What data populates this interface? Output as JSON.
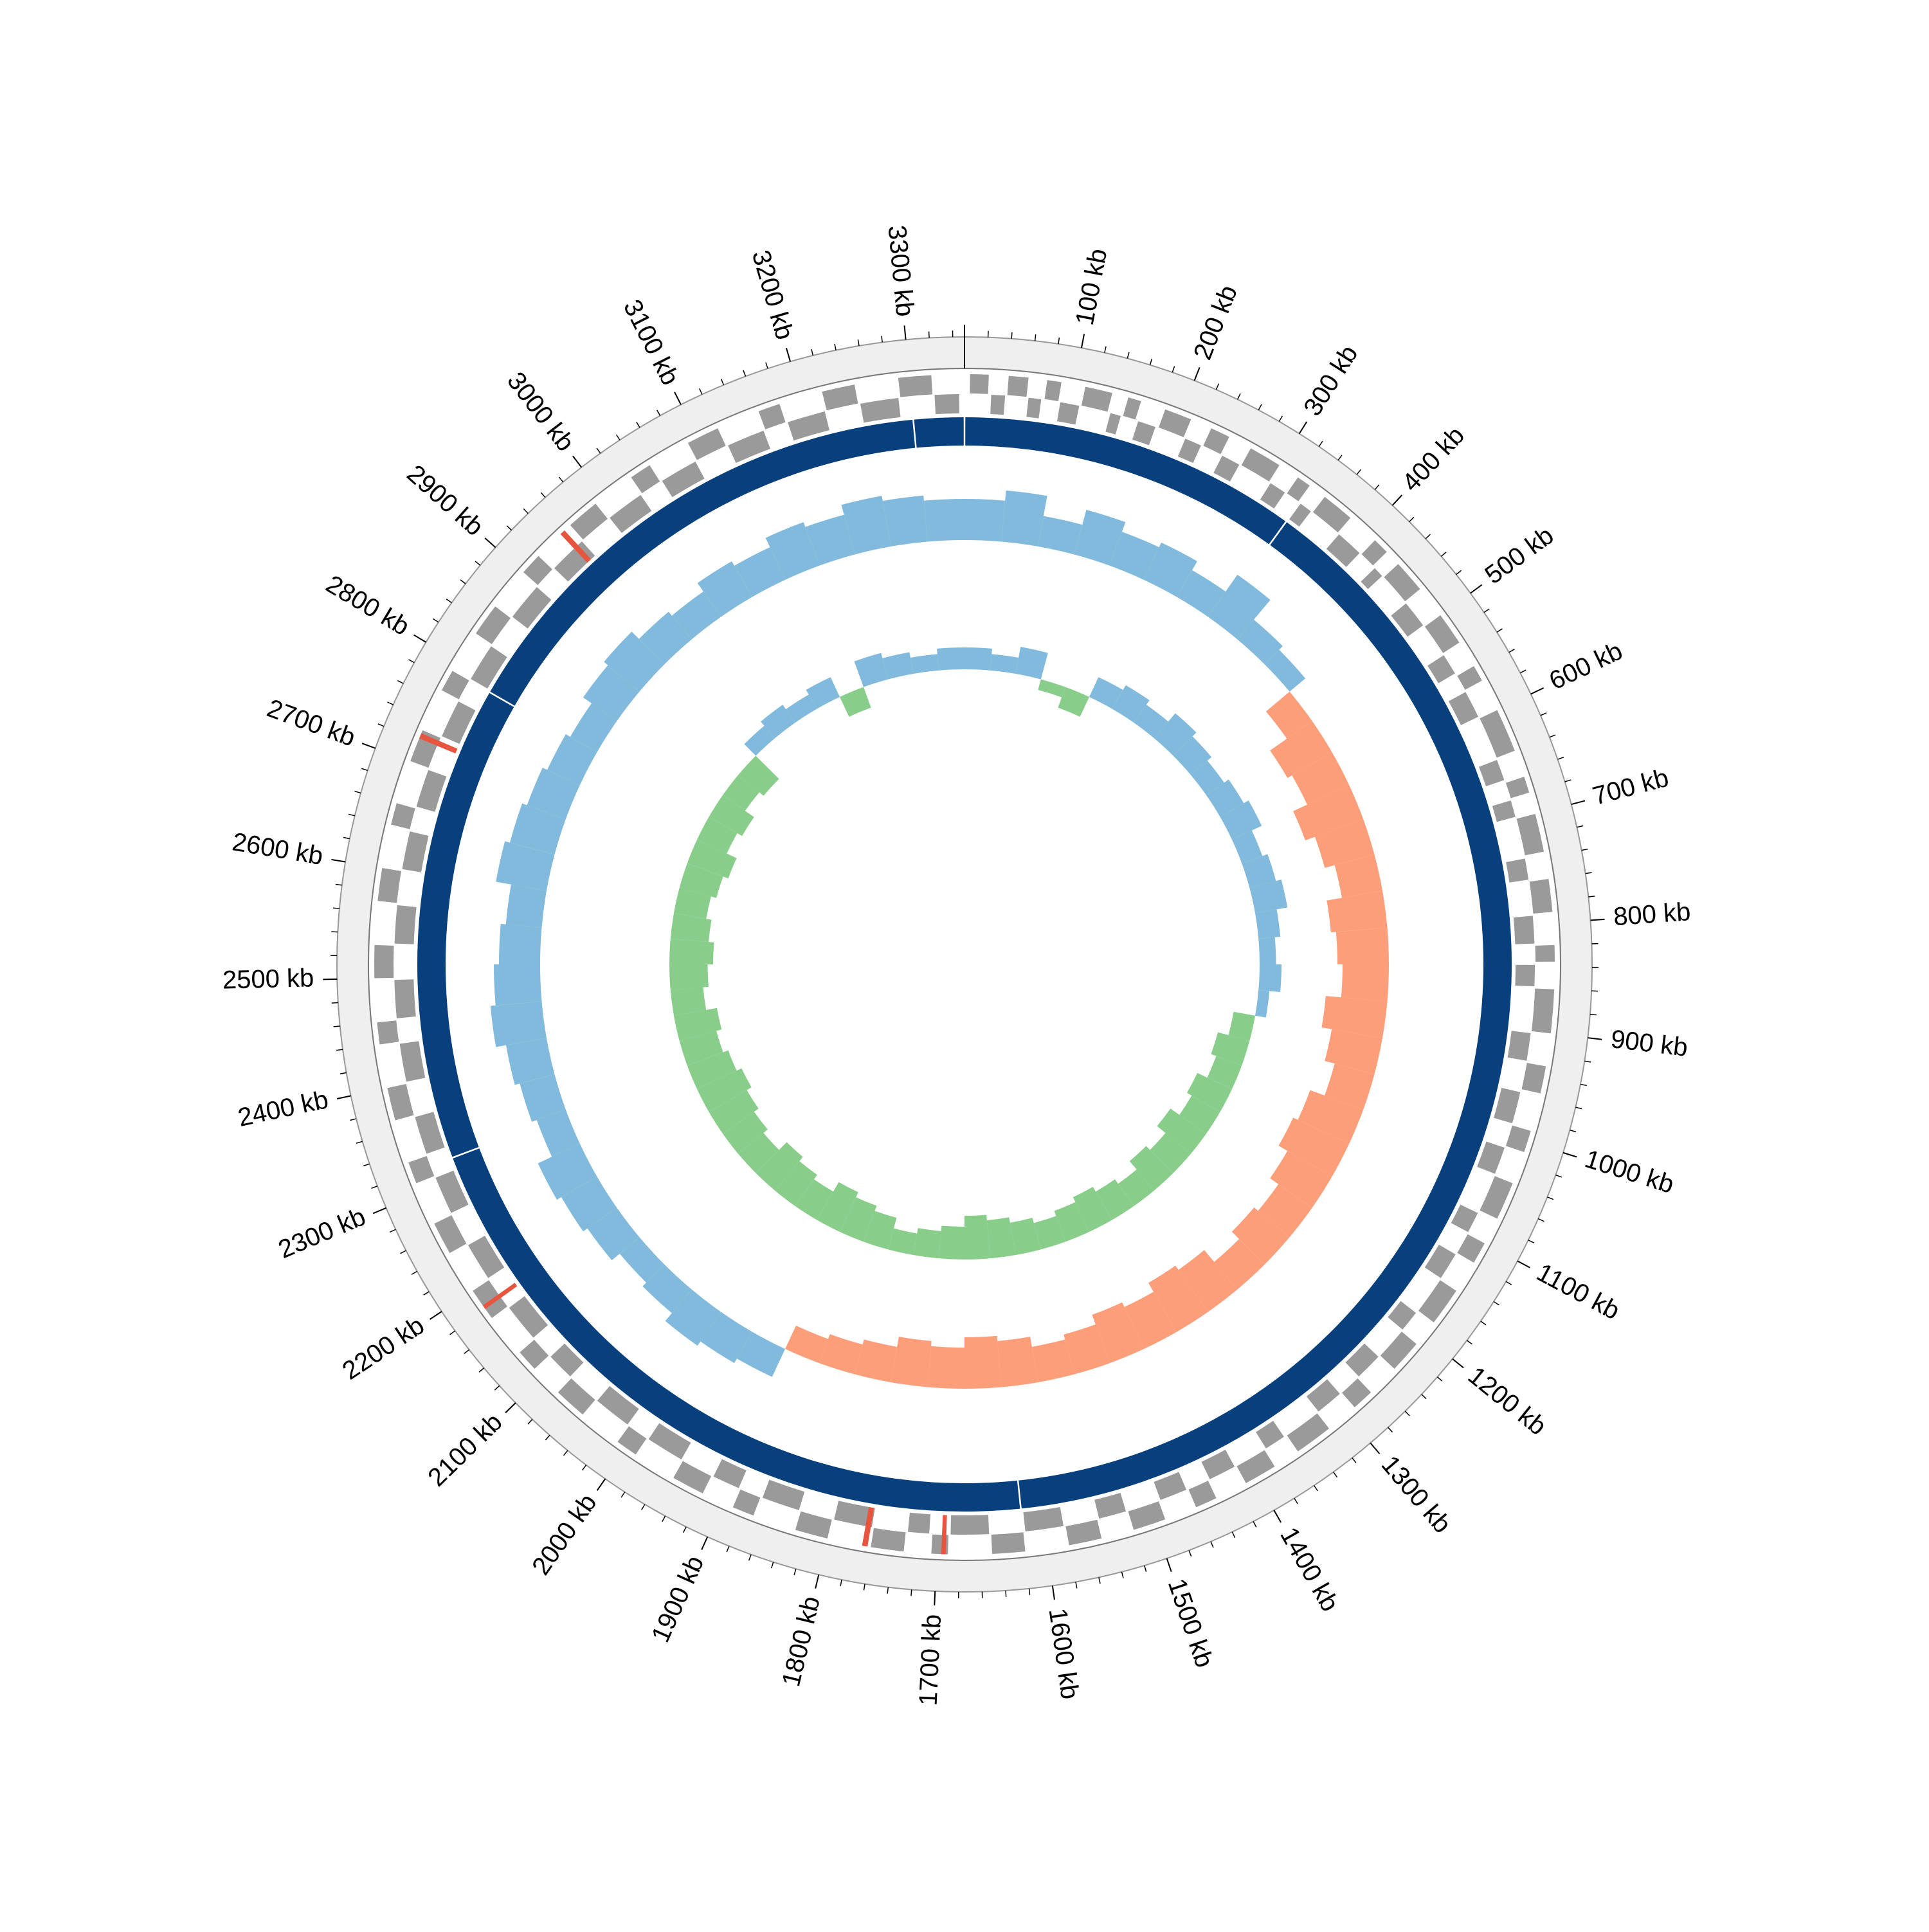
{
  "chart_data": {
    "type": "circular-genome",
    "xlim": [
      0,
      3350
    ],
    "xticks": [
      {
        "value": 100,
        "label": "100 kb"
      },
      {
        "value": 200,
        "label": "200 kb"
      },
      {
        "value": 300,
        "label": "300 kb"
      },
      {
        "value": 400,
        "label": "400 kb"
      },
      {
        "value": 500,
        "label": "500 kb"
      },
      {
        "value": 600,
        "label": "600 kb"
      },
      {
        "value": 700,
        "label": "700 kb"
      },
      {
        "value": 800,
        "label": "800 kb"
      },
      {
        "value": 900,
        "label": "900 kb"
      },
      {
        "value": 1000,
        "label": "1000 kb"
      },
      {
        "value": 1100,
        "label": "1100 kb"
      },
      {
        "value": 1200,
        "label": "1200 kb"
      },
      {
        "value": 1300,
        "label": "1300 kb"
      },
      {
        "value": 1400,
        "label": "1400 kb"
      },
      {
        "value": 1500,
        "label": "1500 kb"
      },
      {
        "value": 1600,
        "label": "1600 kb"
      },
      {
        "value": 1700,
        "label": "1700 kb"
      },
      {
        "value": 1800,
        "label": "1800 kb"
      },
      {
        "value": 1900,
        "label": "1900 kb"
      },
      {
        "value": 2000,
        "label": "2000 kb"
      },
      {
        "value": 2100,
        "label": "2100 kb"
      },
      {
        "value": 2200,
        "label": "2200 kb"
      },
      {
        "value": 2300,
        "label": "2300 kb"
      },
      {
        "value": 2400,
        "label": "2400 kb"
      },
      {
        "value": 2500,
        "label": "2500 kb"
      },
      {
        "value": 2600,
        "label": "2600 kb"
      },
      {
        "value": 2700,
        "label": "2700 kb"
      },
      {
        "value": 2800,
        "label": "2800 kb"
      },
      {
        "value": 2900,
        "label": "2900 kb"
      },
      {
        "value": 3000,
        "label": "3000 kb"
      },
      {
        "value": 3100,
        "label": "3100 kb"
      },
      {
        "value": 3200,
        "label": "3200 kb"
      },
      {
        "value": 3300,
        "label": "3300 kb"
      }
    ],
    "minor_tick_step": 20,
    "gene_color": "#9a9a9a",
    "rrna_color": "#e8553e",
    "genes_forward": [
      [
        5,
        22
      ],
      [
        40,
        58
      ],
      [
        75,
        88
      ],
      [
        110,
        135
      ],
      [
        150,
        162
      ],
      [
        185,
        210
      ],
      [
        230,
        248
      ],
      [
        270,
        300
      ],
      [
        320,
        333
      ],
      [
        350,
        380
      ],
      [
        410,
        425
      ],
      [
        440,
        470
      ],
      [
        500,
        530
      ],
      [
        555,
        570
      ],
      [
        600,
        640
      ],
      [
        665,
        680
      ],
      [
        700,
        735
      ],
      [
        760,
        790
      ],
      [
        820,
        835
      ],
      [
        860,
        900
      ],
      [
        930,
        955
      ],
      [
        990,
        1010
      ],
      [
        1040,
        1075
      ],
      [
        1100,
        1120
      ],
      [
        1150,
        1185
      ],
      [
        1210,
        1240
      ],
      [
        1270,
        1290
      ],
      [
        1320,
        1355
      ],
      [
        1380,
        1410
      ],
      [
        1440,
        1460
      ],
      [
        1490,
        1520
      ],
      [
        1550,
        1580
      ],
      [
        1620,
        1650
      ],
      [
        1690,
        1705
      ],
      [
        1730,
        1760
      ],
      [
        1800,
        1830
      ],
      [
        1870,
        1890
      ],
      [
        1920,
        1950
      ],
      [
        1990,
        2010
      ],
      [
        2050,
        2080
      ],
      [
        2110,
        2130
      ],
      [
        2170,
        2200
      ],
      [
        2240,
        2270
      ],
      [
        2310,
        2330
      ],
      [
        2370,
        2400
      ],
      [
        2440,
        2460
      ],
      [
        2500,
        2530
      ],
      [
        2570,
        2600
      ],
      [
        2640,
        2660
      ],
      [
        2700,
        2730
      ],
      [
        2770,
        2790
      ],
      [
        2830,
        2860
      ],
      [
        2900,
        2920
      ],
      [
        2960,
        2990
      ],
      [
        3030,
        3050
      ],
      [
        3090,
        3120
      ],
      [
        3160,
        3180
      ],
      [
        3220,
        3250
      ],
      [
        3290,
        3320
      ]
    ],
    "genes_reverse": [
      [
        25,
        38
      ],
      [
        60,
        72
      ],
      [
        90,
        108
      ],
      [
        138,
        148
      ],
      [
        165,
        182
      ],
      [
        212,
        228
      ],
      [
        250,
        268
      ],
      [
        302,
        318
      ],
      [
        336,
        348
      ],
      [
        382,
        408
      ],
      [
        428,
        438
      ],
      [
        472,
        498
      ],
      [
        532,
        552
      ],
      [
        572,
        598
      ],
      [
        642,
        662
      ],
      [
        682,
        698
      ],
      [
        738,
        758
      ],
      [
        792,
        818
      ],
      [
        838,
        858
      ],
      [
        902,
        928
      ],
      [
        958,
        988
      ],
      [
        1012,
        1038
      ],
      [
        1078,
        1098
      ],
      [
        1122,
        1148
      ],
      [
        1188,
        1208
      ],
      [
        1242,
        1268
      ],
      [
        1292,
        1318
      ],
      [
        1358,
        1378
      ],
      [
        1412,
        1438
      ],
      [
        1462,
        1488
      ],
      [
        1522,
        1548
      ],
      [
        1582,
        1618
      ],
      [
        1652,
        1688
      ],
      [
        1708,
        1728
      ],
      [
        1762,
        1798
      ],
      [
        1832,
        1868
      ],
      [
        1892,
        1918
      ],
      [
        1952,
        1988
      ],
      [
        2012,
        2048
      ],
      [
        2082,
        2108
      ],
      [
        2132,
        2168
      ],
      [
        2202,
        2238
      ],
      [
        2272,
        2308
      ],
      [
        2332,
        2368
      ],
      [
        2402,
        2438
      ],
      [
        2462,
        2498
      ],
      [
        2532,
        2568
      ],
      [
        2602,
        2638
      ],
      [
        2662,
        2698
      ],
      [
        2732,
        2768
      ],
      [
        2792,
        2828
      ],
      [
        2862,
        2898
      ],
      [
        2922,
        2958
      ],
      [
        2992,
        3028
      ],
      [
        3052,
        3088
      ],
      [
        3122,
        3158
      ],
      [
        3182,
        3218
      ],
      [
        3252,
        3288
      ],
      [
        3322,
        3345
      ]
    ],
    "rrna": [
      [
        2948,
        2953
      ],
      [
        2722,
        2727
      ],
      [
        2180,
        2184
      ],
      [
        1763,
        1768
      ],
      [
        1692,
        1696
      ]
    ],
    "contig_color": "#08407e",
    "contigs": [
      [
        0,
        335
      ],
      [
        335,
        1620
      ],
      [
        1620,
        2320
      ],
      [
        2320,
        2790
      ],
      [
        2790,
        3300
      ],
      [
        3300,
        3350
      ]
    ],
    "gc_skew": {
      "positive_color": "#6baed6",
      "negative_color": "#fc8d62",
      "values": [
        0.04,
        0.05,
        0.03,
        0.045,
        0.035,
        0.04,
        0.03,
        0.05,
        0.025,
        0.02,
        -0.03,
        -0.05,
        -0.045,
        -0.06,
        -0.05,
        -0.04,
        -0.055,
        -0.05,
        -0.045,
        -0.06,
        -0.05,
        -0.04,
        -0.055,
        -0.06,
        -0.05,
        -0.04,
        -0.045,
        -0.035,
        -0.05,
        -0.055,
        -0.045,
        -0.05,
        -0.04,
        -0.035,
        -0.045,
        -0.05,
        -0.04,
        -0.045,
        -0.035,
        -0.03,
        -0.025,
        0.03,
        0.035,
        0.04,
        0.03,
        0.025,
        0.035,
        0.04,
        0.045,
        0.03,
        0.035,
        0.04,
        0.05,
        0.045,
        0.04,
        0.035,
        0.05,
        0.045,
        0.04,
        0.035,
        0.03,
        0.04,
        0.045,
        0.035,
        0.03,
        0.04,
        0.035,
        0.045,
        0.04,
        0.05,
        0.045,
        0.04
      ]
    },
    "gc_content": {
      "positive_color": "#6baed6",
      "negative_color": "#74c476",
      "values": [
        0.02,
        0.015,
        0.025,
        -0.01,
        -0.02,
        0.02,
        0.025,
        0.02,
        0.03,
        0.025,
        0.02,
        0.025,
        0.03,
        0.02,
        0.025,
        0.03,
        0.02,
        0.015,
        0.02,
        0.01,
        -0.02,
        -0.03,
        -0.025,
        -0.035,
        -0.03,
        -0.04,
        -0.03,
        -0.035,
        -0.025,
        -0.03,
        -0.035,
        -0.03,
        -0.025,
        -0.03,
        -0.035,
        -0.04,
        -0.03,
        -0.025,
        -0.02,
        -0.03,
        -0.035,
        -0.04,
        -0.03,
        -0.035,
        -0.04,
        -0.03,
        -0.035,
        -0.04,
        -0.045,
        -0.04,
        -0.035,
        -0.04,
        -0.03,
        -0.035,
        -0.04,
        -0.035,
        -0.03,
        -0.035,
        -0.04,
        -0.03,
        -0.035,
        -0.025,
        -0.03,
        0.015,
        0.02,
        0.015,
        0.02,
        -0.02,
        0.025,
        0.02,
        0.015,
        0.02
      ]
    }
  }
}
